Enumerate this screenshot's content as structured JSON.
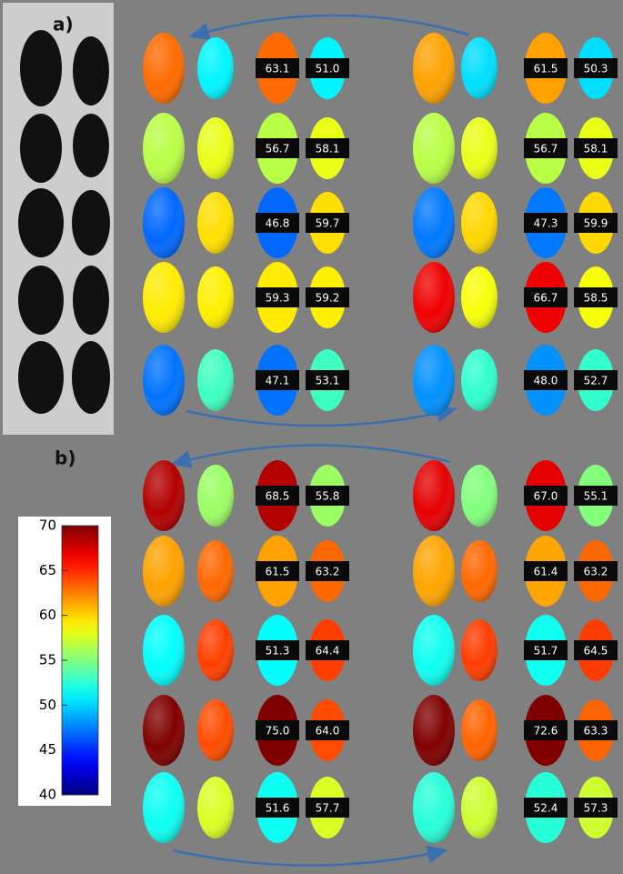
{
  "panels": [
    {
      "label": "a)",
      "rows": [
        [
          "63.1",
          "51.0",
          "61.5",
          "50.3"
        ],
        [
          "56.7",
          "58.1",
          "56.7",
          "58.1"
        ],
        [
          "46.8",
          "59.7",
          "47.3",
          "59.9"
        ],
        [
          "59.3",
          "59.2",
          "66.7",
          "58.5"
        ],
        [
          "47.1",
          "53.1",
          "48.0",
          "52.7"
        ]
      ]
    },
    {
      "label": "b)",
      "rows": [
        [
          "68.5",
          "55.8",
          "67.0",
          "55.1"
        ],
        [
          "61.5",
          "63.2",
          "61.4",
          "63.2"
        ],
        [
          "51.3",
          "64.4",
          "51.7",
          "64.5"
        ],
        [
          "75.0",
          "64.0",
          "72.6",
          "63.3"
        ],
        [
          "51.6",
          "57.7",
          "52.4",
          "57.3"
        ]
      ]
    }
  ],
  "colorbar": {
    "range": [
      40,
      70
    ],
    "ticks": [
      40,
      45,
      50,
      55,
      60,
      65,
      70
    ]
  }
}
